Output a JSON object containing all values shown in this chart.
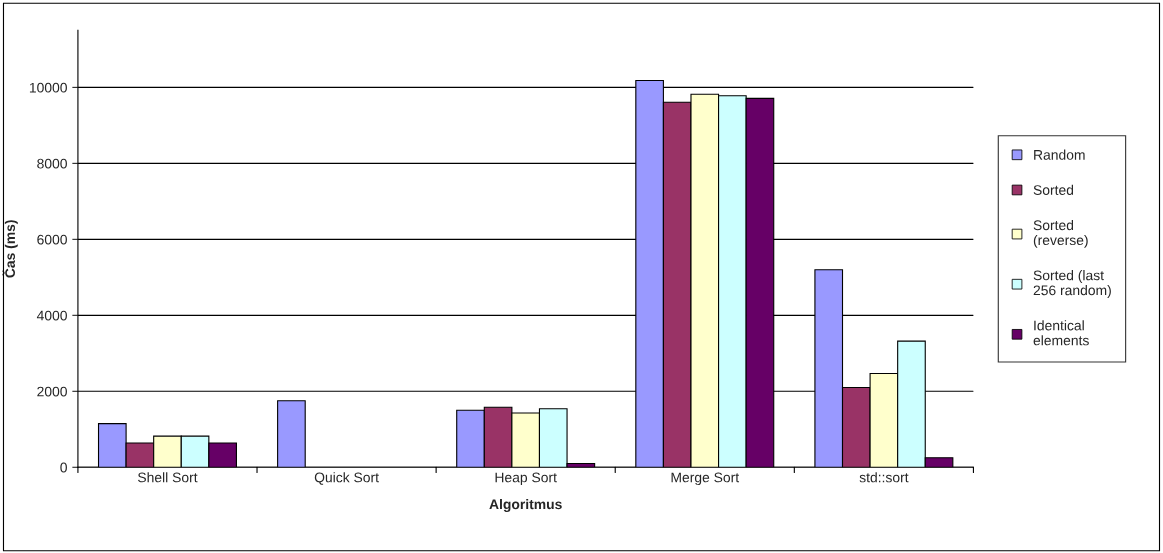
{
  "chart_data": {
    "type": "bar",
    "xlabel": "Algoritmus",
    "ylabel": "Čas (ms)",
    "categories": [
      "Shell Sort",
      "Quick Sort",
      "Heap Sort",
      "Merge Sort",
      "std::sort"
    ],
    "series": [
      {
        "name": "Random",
        "color": "#9999ff",
        "values": [
          1150,
          1750,
          1500,
          10180,
          5200
        ]
      },
      {
        "name": "Sorted",
        "color": "#993366",
        "values": [
          640,
          null,
          1580,
          9610,
          2100
        ]
      },
      {
        "name": "Sorted (reverse)",
        "color": "#ffffcc",
        "values": [
          820,
          null,
          1430,
          9820,
          2470
        ]
      },
      {
        "name": "Sorted (last 256 random)",
        "color": "#ccffff",
        "values": [
          820,
          null,
          1540,
          9780,
          3320
        ]
      },
      {
        "name": "Identical elements",
        "color": "#660066",
        "values": [
          640,
          null,
          100,
          9710,
          250
        ]
      }
    ],
    "ylim": [
      0,
      11500
    ],
    "yticks": [
      0,
      2000,
      4000,
      6000,
      8000,
      10000
    ],
    "grid": "y",
    "legend": "right"
  }
}
